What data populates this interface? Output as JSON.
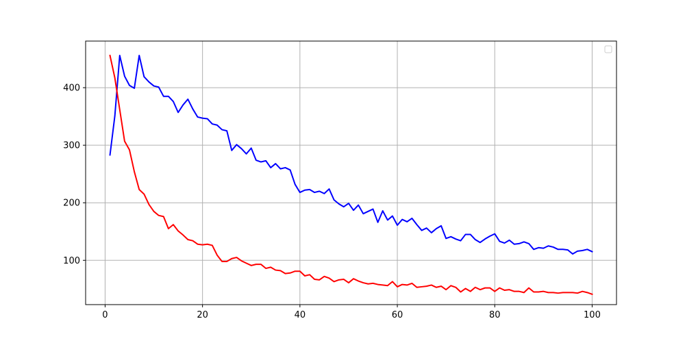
{
  "chart_data": {
    "type": "line",
    "title": "",
    "xlabel": "",
    "ylabel": "",
    "xlim": [
      -4,
      105
    ],
    "ylim": [
      23,
      481
    ],
    "x_ticks": [
      0,
      20,
      40,
      60,
      80,
      100
    ],
    "y_ticks": [
      100,
      200,
      300,
      400
    ],
    "grid": true,
    "legend": {
      "placement": "upper-right",
      "entries": []
    },
    "x": [
      1,
      2,
      3,
      4,
      5,
      6,
      7,
      8,
      9,
      10,
      11,
      12,
      13,
      14,
      15,
      16,
      17,
      18,
      19,
      20,
      21,
      22,
      23,
      24,
      25,
      26,
      27,
      28,
      29,
      30,
      31,
      32,
      33,
      34,
      35,
      36,
      37,
      38,
      39,
      40,
      41,
      42,
      43,
      44,
      45,
      46,
      47,
      48,
      49,
      50,
      51,
      52,
      53,
      54,
      55,
      56,
      57,
      58,
      59,
      60,
      61,
      62,
      63,
      64,
      65,
      66,
      67,
      68,
      69,
      70,
      71,
      72,
      73,
      74,
      75,
      76,
      77,
      78,
      79,
      80,
      81,
      82,
      83,
      84,
      85,
      86,
      87,
      88,
      89,
      90,
      91,
      92,
      93,
      94,
      95,
      96,
      97,
      98,
      99,
      100
    ],
    "series": [
      {
        "color": "#0000ff",
        "values": [
          283,
          351,
          456,
          420,
          404,
          399,
          456,
          419,
          410,
          403,
          401,
          385,
          385,
          376,
          357,
          370,
          380,
          363,
          349,
          347,
          346,
          337,
          335,
          327,
          325,
          291,
          301,
          294,
          285,
          295,
          274,
          271,
          273,
          261,
          268,
          259,
          261,
          257,
          232,
          218,
          222,
          223,
          218,
          220,
          216,
          224,
          205,
          198,
          193,
          199,
          187,
          196,
          181,
          185,
          189,
          166,
          186,
          170,
          177,
          161,
          171,
          167,
          173,
          162,
          152,
          156,
          148,
          155,
          160,
          138,
          141,
          137,
          134,
          145,
          145,
          136,
          131,
          137,
          142,
          146,
          133,
          130,
          135,
          128,
          129,
          132,
          129,
          119,
          122,
          121,
          125,
          123,
          119,
          119,
          118,
          111,
          116,
          117,
          119,
          115
        ]
      },
      {
        "color": "#ff0000",
        "values": [
          456,
          417,
          362,
          307,
          292,
          254,
          223,
          215,
          197,
          185,
          178,
          176,
          155,
          162,
          151,
          144,
          136,
          134,
          128,
          127,
          128,
          126,
          109,
          98,
          98,
          103,
          105,
          99,
          95,
          91,
          93,
          93,
          86,
          88,
          83,
          82,
          77,
          78,
          81,
          81,
          73,
          75,
          67,
          66,
          72,
          69,
          63,
          66,
          67,
          61,
          68,
          64,
          61,
          59,
          60,
          58,
          57,
          56,
          63,
          54,
          58,
          57,
          60,
          53,
          54,
          55,
          57,
          53,
          55,
          49,
          56,
          53,
          45,
          51,
          46,
          53,
          49,
          52,
          52,
          46,
          52,
          48,
          49,
          46,
          46,
          44,
          52,
          45,
          45,
          46,
          44,
          44,
          43,
          44,
          44,
          44,
          43,
          46,
          44,
          41
        ]
      }
    ]
  }
}
